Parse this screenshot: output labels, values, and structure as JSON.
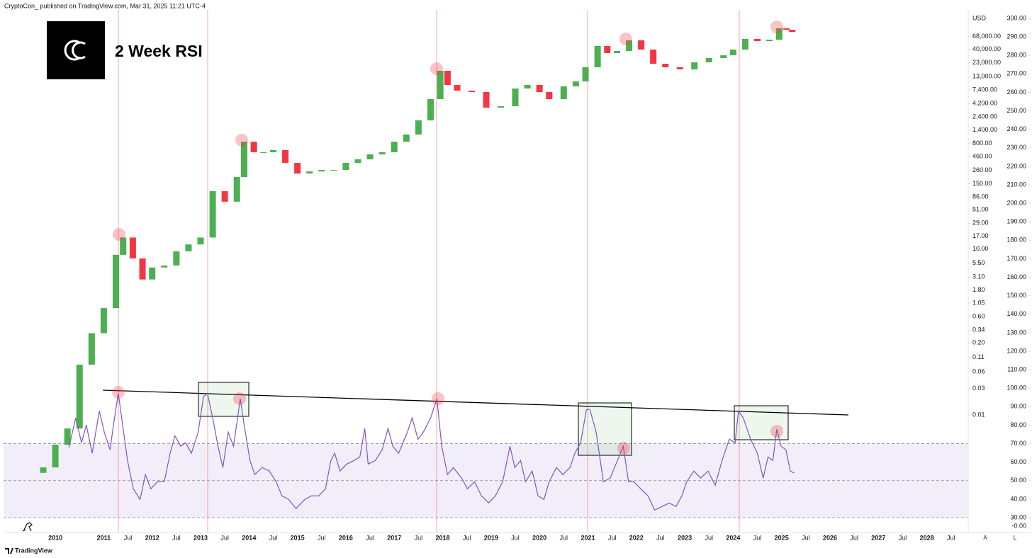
{
  "header": "CryptoCon_ published on TradingView.com, Mar 31, 2025 11:21 UTC-4",
  "footer": "TradingView",
  "scale_buttons": [
    "A",
    "L"
  ],
  "chart_data": {
    "type": "candlestick",
    "title": "2 Week RSI",
    "currency": "USD",
    "y_log": true,
    "up_color": "#4caf50",
    "down_color": "#f23645",
    "xlim": [
      2008.93,
      2028.84
    ],
    "xticks": [
      2010,
      2011,
      {
        "value": 2011.5,
        "label": "Jul"
      },
      2012,
      {
        "value": 2012.5,
        "label": "Jul"
      },
      2013,
      {
        "value": 2013.5,
        "label": "Jul"
      },
      2014,
      {
        "value": 2014.5,
        "label": "Jul"
      },
      2015,
      {
        "value": 2015.5,
        "label": "Jul"
      },
      2016,
      {
        "value": 2016.5,
        "label": "Jul"
      },
      2017,
      {
        "value": 2017.5,
        "label": "Jul"
      },
      2018,
      {
        "value": 2018.5,
        "label": "Jul"
      },
      2019,
      {
        "value": 2019.5,
        "label": "Jul"
      },
      2020,
      {
        "value": 2020.5,
        "label": "Jul"
      },
      2021,
      {
        "value": 2021.5,
        "label": "Jul"
      },
      2022,
      {
        "value": 2022.5,
        "label": "Jul"
      },
      2023,
      {
        "value": 2023.5,
        "label": "Jul"
      },
      2024,
      {
        "value": 2024.5,
        "label": "Jul"
      },
      2025,
      {
        "value": 2025.5,
        "label": "Jul"
      },
      2026,
      {
        "value": 2026.5,
        "label": "Jul"
      },
      2027,
      {
        "value": 2027.5,
        "label": "Jul"
      },
      2028,
      {
        "value": 2028.5,
        "label": "Jul"
      }
    ],
    "ylim": [
      0.0001,
      200000
    ],
    "yticks": [
      {
        "value": 68000,
        "label": "68,000.00"
      },
      {
        "value": 40000,
        "label": "40,000.00"
      },
      {
        "value": 23000,
        "label": "23,000.00"
      },
      {
        "value": 13000,
        "label": "13,000.00"
      },
      {
        "value": 7400,
        "label": "7,400.00"
      },
      {
        "value": 4200,
        "label": "4,200.00"
      },
      {
        "value": 2400,
        "label": "2,400.00"
      },
      {
        "value": 1400,
        "label": "1,400.00"
      },
      {
        "value": 800,
        "label": "800.00"
      },
      {
        "value": 460,
        "label": "460.00"
      },
      {
        "value": 260,
        "label": "260.00"
      },
      {
        "value": 150,
        "label": "150.00"
      },
      {
        "value": 86,
        "label": "86.00"
      },
      {
        "value": 51,
        "label": "51.00"
      },
      {
        "value": 29,
        "label": "29.00"
      },
      {
        "value": 17,
        "label": "17.00"
      },
      {
        "value": 10,
        "label": "10.00"
      },
      {
        "value": 5.5,
        "label": "5.50"
      },
      {
        "value": 3.1,
        "label": "3.10"
      },
      {
        "value": 1.8,
        "label": "1.80"
      },
      {
        "value": 1.05,
        "label": "1.05"
      },
      {
        "value": 0.6,
        "label": "0.60"
      },
      {
        "value": 0.34,
        "label": "0.34"
      },
      {
        "value": 0.2,
        "label": "0.20"
      },
      {
        "value": 0.11,
        "label": "0.11"
      },
      {
        "value": 0.06,
        "label": "0.06"
      },
      {
        "value": 0.03,
        "label": "0.03"
      },
      {
        "value": 0.01,
        "label": "0.01"
      }
    ],
    "y2lim": [
      25.63,
      304.19
    ],
    "y2ticks": [
      {
        "value": 300,
        "label": "300.00"
      },
      {
        "value": 290,
        "label": "290.00"
      },
      {
        "value": 280,
        "label": "280.00"
      },
      {
        "value": 270,
        "label": "270.00"
      },
      {
        "value": 260,
        "label": "260.00"
      },
      {
        "value": 250,
        "label": "250.00"
      },
      {
        "value": 240,
        "label": "240.00"
      },
      {
        "value": 230,
        "label": "230.00"
      },
      {
        "value": 220,
        "label": "220.00"
      },
      {
        "value": 210,
        "label": "210.00"
      },
      {
        "value": 200,
        "label": "200.00"
      },
      {
        "value": 190,
        "label": "190.00"
      },
      {
        "value": 180,
        "label": "180.00"
      },
      {
        "value": 170,
        "label": "170.00"
      },
      {
        "value": 160,
        "label": "160.00"
      },
      {
        "value": 150,
        "label": "150.00"
      },
      {
        "value": 140,
        "label": "140.00"
      },
      {
        "value": 130,
        "label": "130.00"
      },
      {
        "value": 120,
        "label": "120.00"
      },
      {
        "value": 110,
        "label": "110.00"
      },
      {
        "value": 100,
        "label": "100.00"
      },
      {
        "value": 90,
        "label": "90.00"
      },
      {
        "value": 80,
        "label": "80.00"
      },
      {
        "value": 70,
        "label": "70.00"
      },
      {
        "value": 60,
        "label": "60.00"
      },
      {
        "value": 50,
        "label": "50.00"
      },
      {
        "value": 40,
        "label": "40.00"
      },
      {
        "value": 30,
        "label": "30.00"
      }
    ],
    "y2_floor_label": "-0.00",
    "candles": {
      "x": [
        2009.75,
        2010.0,
        2010.25,
        2010.5,
        2010.75,
        2011.0,
        2011.25,
        2011.4,
        2011.6,
        2011.8,
        2012.0,
        2012.25,
        2012.5,
        2012.75,
        2013.0,
        2013.25,
        2013.5,
        2013.75,
        2013.9,
        2014.1,
        2014.3,
        2014.5,
        2014.75,
        2015.0,
        2015.25,
        2015.5,
        2015.75,
        2016.0,
        2016.25,
        2016.5,
        2016.75,
        2017.0,
        2017.25,
        2017.5,
        2017.75,
        2017.95,
        2018.1,
        2018.3,
        2018.6,
        2018.9,
        2019.2,
        2019.5,
        2019.75,
        2020.0,
        2020.2,
        2020.5,
        2020.75,
        2020.95,
        2021.2,
        2021.4,
        2021.6,
        2021.85,
        2022.1,
        2022.35,
        2022.6,
        2022.9,
        2023.2,
        2023.5,
        2023.8,
        2024.0,
        2024.25,
        2024.5,
        2024.75,
        2024.95,
        2025.1,
        2025.22
      ],
      "open": [
        0.0009,
        0.00113,
        0.0029,
        0.0057,
        0.081,
        0.3,
        0.85,
        7.8,
        16,
        6.7,
        2.8,
        4.6,
        5.0,
        9.0,
        12,
        16,
        110,
        71,
        198,
        860,
        555,
        555,
        606,
        357,
        229,
        250,
        266,
        266,
        357,
        413,
        508,
        555,
        860,
        1160,
        2090,
        5050,
        16400,
        9100,
        7190,
        6780,
        3550,
        3760,
        7860,
        9100,
        6780,
        5050,
        8590,
        10550,
        19000,
        45900,
        34250,
        37400,
        58200,
        39700,
        22000,
        19000,
        17400,
        23300,
        27900,
        31300,
        39700,
        61700,
        56400,
        59900,
        95900,
        90500
      ],
      "close": [
        0.00113,
        0.0029,
        0.0057,
        0.081,
        0.3,
        0.85,
        7.8,
        16,
        6.7,
        2.8,
        4.6,
        5.0,
        9.0,
        12,
        16,
        110,
        71,
        198,
        860,
        555,
        555,
        606,
        357,
        229,
        250,
        266,
        266,
        357,
        413,
        508,
        555,
        860,
        1160,
        2090,
        5050,
        16400,
        9100,
        7190,
        6780,
        3550,
        3760,
        7860,
        9100,
        6780,
        5050,
        8590,
        10550,
        19000,
        45900,
        34250,
        37400,
        58200,
        39700,
        22000,
        19000,
        17400,
        23300,
        27900,
        31300,
        39700,
        61700,
        56400,
        59900,
        95900,
        90500,
        82800
      ]
    },
    "rsi": {
      "color": "#7e57c2",
      "levels": [
        30,
        50,
        70
      ],
      "x": [
        2010.28,
        2010.42,
        2010.54,
        2010.64,
        2010.76,
        2010.91,
        2011.01,
        2011.13,
        2011.2,
        2011.3,
        2011.37,
        2011.49,
        2011.61,
        2011.75,
        2011.86,
        2011.97,
        2012.11,
        2012.25,
        2012.37,
        2012.47,
        2012.59,
        2012.69,
        2012.81,
        2012.95,
        2013.06,
        2013.14,
        2013.25,
        2013.36,
        2013.46,
        2013.57,
        2013.68,
        2013.82,
        2013.9,
        2014.02,
        2014.12,
        2014.27,
        2014.42,
        2014.56,
        2014.68,
        2014.82,
        2014.97,
        2015.15,
        2015.29,
        2015.44,
        2015.58,
        2015.69,
        2015.77,
        2015.88,
        2016.02,
        2016.17,
        2016.29,
        2016.39,
        2016.46,
        2016.61,
        2016.75,
        2016.87,
        2016.97,
        2017.09,
        2017.27,
        2017.37,
        2017.49,
        2017.6,
        2017.75,
        2017.88,
        2017.98,
        2018.1,
        2018.22,
        2018.39,
        2018.51,
        2018.66,
        2018.8,
        2018.95,
        2019.09,
        2019.24,
        2019.39,
        2019.49,
        2019.61,
        2019.71,
        2019.85,
        2019.97,
        2020.09,
        2020.2,
        2020.35,
        2020.48,
        2020.63,
        2020.73,
        2020.85,
        2020.97,
        2021.04,
        2021.17,
        2021.32,
        2021.46,
        2021.61,
        2021.73,
        2021.84,
        2021.95,
        2022.09,
        2022.24,
        2022.38,
        2022.53,
        2022.68,
        2022.82,
        2022.94,
        2023.04,
        2023.19,
        2023.33,
        2023.48,
        2023.63,
        2023.77,
        2023.92,
        2024.04,
        2024.11,
        2024.21,
        2024.36,
        2024.5,
        2024.62,
        2024.72,
        2024.82,
        2024.9,
        2024.99,
        2025.09,
        2025.18,
        2025.26
      ],
      "values": [
        67.9,
        83.9,
        70.5,
        80.1,
        64.8,
        87.7,
        76.2,
        66.7,
        80.1,
        97.3,
        83.9,
        60.9,
        45.6,
        39.8,
        53.3,
        45.6,
        49.4,
        49.4,
        64.8,
        74.3,
        68.6,
        70.5,
        64.8,
        76.2,
        95.4,
        97.3,
        83.9,
        68.6,
        57.1,
        76.2,
        68.6,
        94.3,
        80.1,
        60.9,
        53.3,
        57.1,
        55.2,
        49.4,
        41.8,
        39.8,
        34.9,
        39.8,
        41.8,
        41.8,
        45.6,
        60.9,
        64.8,
        55.2,
        59.0,
        60.9,
        62.8,
        78.2,
        59.0,
        60.9,
        66.7,
        78.2,
        68.6,
        64.8,
        76.2,
        83.9,
        72.4,
        76.2,
        83.9,
        94.3,
        68.6,
        53.3,
        57.1,
        51.4,
        45.6,
        49.4,
        41.8,
        38.0,
        41.8,
        49.4,
        68.6,
        57.1,
        60.9,
        49.4,
        55.2,
        41.8,
        39.8,
        49.4,
        57.1,
        53.3,
        57.1,
        64.8,
        70.5,
        88.5,
        88.5,
        76.2,
        49.4,
        51.4,
        60.9,
        68.6,
        49.4,
        49.4,
        45.6,
        41.8,
        34.1,
        36.0,
        37.9,
        36.0,
        41.8,
        49.4,
        55.2,
        51.4,
        55.2,
        47.5,
        60.9,
        72.4,
        70.5,
        87.7,
        83.9,
        72.4,
        64.8,
        51.4,
        62.8,
        60.9,
        77.8,
        68.6,
        66.7,
        55.2,
        54.1
      ]
    }
  }
}
